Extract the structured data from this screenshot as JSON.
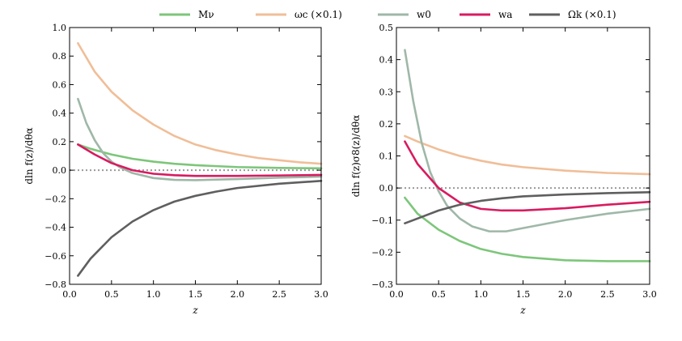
{
  "legend": {
    "placement": "top-center",
    "entries": [
      {
        "key": "Mnu",
        "label": "Mν",
        "color": "#7dc67a"
      },
      {
        "key": "omc",
        "label": "ωc (×0.1)",
        "color": "#f0be98"
      },
      {
        "key": "w0",
        "label": "w0",
        "color": "#9fb8a8"
      },
      {
        "key": "wa",
        "label": "wa",
        "color": "#d81b60"
      },
      {
        "key": "Ok",
        "label": "Ωk (×0.1)",
        "color": "#5f5f5f"
      }
    ]
  },
  "chart_data": [
    {
      "type": "line",
      "panel": "left",
      "xlabel": "z",
      "ylabel": "dln f(z)/dθα",
      "xlim": [
        0.0,
        3.0
      ],
      "ylim": [
        -0.8,
        1.0
      ],
      "xticks": [
        "0.0",
        "0.5",
        "1.0",
        "1.5",
        "2.0",
        "2.5",
        "3.0"
      ],
      "yticks": [
        "−0.8",
        "−0.6",
        "−0.4",
        "−0.2",
        "0.0",
        "0.2",
        "0.4",
        "0.6",
        "0.8",
        "1.0"
      ],
      "reference_line": {
        "y": 0.0,
        "style": "dotted",
        "color": "#999999"
      },
      "series": [
        {
          "key": "omc",
          "color": "#f0be98",
          "x": [
            0.1,
            0.3,
            0.5,
            0.75,
            1.0,
            1.25,
            1.5,
            1.75,
            2.0,
            2.25,
            2.5,
            2.75,
            3.0
          ],
          "y": [
            0.89,
            0.69,
            0.55,
            0.42,
            0.32,
            0.24,
            0.18,
            0.14,
            0.11,
            0.085,
            0.07,
            0.055,
            0.045
          ]
        },
        {
          "key": "Mnu",
          "color": "#7dc67a",
          "x": [
            0.1,
            0.25,
            0.5,
            0.75,
            1.0,
            1.25,
            1.5,
            2.0,
            2.5,
            3.0
          ],
          "y": [
            0.18,
            0.15,
            0.11,
            0.08,
            0.06,
            0.045,
            0.035,
            0.022,
            0.016,
            0.013
          ]
        },
        {
          "key": "w0",
          "color": "#9fb8a8",
          "x": [
            0.1,
            0.2,
            0.3,
            0.4,
            0.5,
            0.6,
            0.75,
            1.0,
            1.25,
            1.5,
            2.0,
            2.5,
            3.0
          ],
          "y": [
            0.5,
            0.33,
            0.21,
            0.12,
            0.06,
            0.02,
            -0.02,
            -0.055,
            -0.068,
            -0.07,
            -0.062,
            -0.052,
            -0.045
          ]
        },
        {
          "key": "wa",
          "color": "#d81b60",
          "x": [
            0.1,
            0.3,
            0.5,
            0.75,
            1.0,
            1.25,
            1.5,
            2.0,
            2.5,
            3.0
          ],
          "y": [
            0.18,
            0.11,
            0.05,
            0.0,
            -0.025,
            -0.035,
            -0.04,
            -0.04,
            -0.037,
            -0.033
          ]
        },
        {
          "key": "Ok",
          "color": "#5f5f5f",
          "x": [
            0.1,
            0.25,
            0.5,
            0.75,
            1.0,
            1.25,
            1.5,
            1.75,
            2.0,
            2.5,
            3.0
          ],
          "y": [
            -0.74,
            -0.62,
            -0.47,
            -0.36,
            -0.28,
            -0.22,
            -0.18,
            -0.15,
            -0.125,
            -0.095,
            -0.075
          ]
        }
      ]
    },
    {
      "type": "line",
      "panel": "right",
      "xlabel": "z",
      "ylabel": "dln f(z)σ8(z)/dθα",
      "xlim": [
        0.0,
        3.0
      ],
      "ylim": [
        -0.3,
        0.5
      ],
      "xticks": [
        "0.0",
        "0.5",
        "1.0",
        "1.5",
        "2.0",
        "2.5",
        "3.0"
      ],
      "yticks": [
        "−0.3",
        "−0.2",
        "−0.1",
        "0.0",
        "0.1",
        "0.2",
        "0.3",
        "0.4",
        "0.5"
      ],
      "reference_line": {
        "y": 0.0,
        "style": "dotted",
        "color": "#999999"
      },
      "series": [
        {
          "key": "omc",
          "color": "#f0be98",
          "x": [
            0.1,
            0.25,
            0.5,
            0.75,
            1.0,
            1.25,
            1.5,
            2.0,
            2.5,
            3.0
          ],
          "y": [
            0.162,
            0.145,
            0.12,
            0.1,
            0.085,
            0.073,
            0.065,
            0.054,
            0.047,
            0.043
          ]
        },
        {
          "key": "Mnu",
          "color": "#7dc67a",
          "x": [
            0.1,
            0.25,
            0.5,
            0.75,
            1.0,
            1.25,
            1.5,
            2.0,
            2.5,
            3.0
          ],
          "y": [
            -0.03,
            -0.08,
            -0.13,
            -0.165,
            -0.19,
            -0.205,
            -0.215,
            -0.225,
            -0.228,
            -0.228
          ]
        },
        {
          "key": "w0",
          "color": "#9fb8a8",
          "x": [
            0.1,
            0.2,
            0.3,
            0.4,
            0.5,
            0.6,
            0.75,
            0.9,
            1.1,
            1.3,
            1.5,
            2.0,
            2.5,
            3.0
          ],
          "y": [
            0.43,
            0.27,
            0.14,
            0.05,
            -0.01,
            -0.055,
            -0.095,
            -0.12,
            -0.135,
            -0.135,
            -0.125,
            -0.1,
            -0.08,
            -0.065
          ]
        },
        {
          "key": "wa",
          "color": "#d81b60",
          "x": [
            0.1,
            0.25,
            0.5,
            0.75,
            1.0,
            1.25,
            1.5,
            2.0,
            2.5,
            3.0
          ],
          "y": [
            0.145,
            0.075,
            0.0,
            -0.045,
            -0.065,
            -0.07,
            -0.07,
            -0.063,
            -0.052,
            -0.043
          ]
        },
        {
          "key": "Ok",
          "color": "#5f5f5f",
          "x": [
            0.1,
            0.3,
            0.5,
            0.75,
            1.0,
            1.25,
            1.5,
            2.0,
            2.5,
            3.0
          ],
          "y": [
            -0.11,
            -0.09,
            -0.07,
            -0.052,
            -0.04,
            -0.032,
            -0.026,
            -0.02,
            -0.016,
            -0.013
          ]
        }
      ]
    }
  ]
}
